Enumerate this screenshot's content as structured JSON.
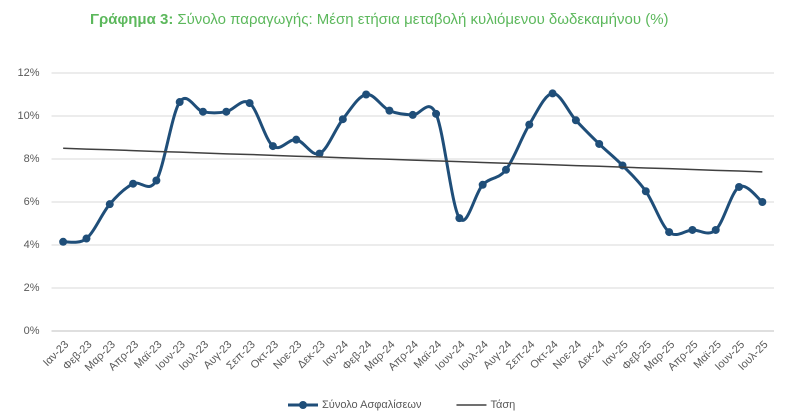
{
  "chart_data": {
    "type": "line",
    "title_label": "Γράφημα 3:",
    "title": "Σύνολο παραγωγής:  Μέση ετήσια μεταβολή κυλιόμενου δωδεκαμήνου (%)",
    "categories": [
      "Ιαν-23",
      "Φεβ-23",
      "Μαρ-23",
      "Απρ-23",
      "Μαϊ-23",
      "Ιουν-23",
      "Ιουλ-23",
      "Αυγ-23",
      "Σεπ-23",
      "Οκτ-23",
      "Νοε-23",
      "Δεκ-23",
      "Ιαν-24",
      "Φεβ-24",
      "Μαρ-24",
      "Απρ-24",
      "Μαϊ-24",
      "Ιουν-24",
      "Ιουλ-24",
      "Αυγ-24",
      "Σεπ-24",
      "Οκτ-24",
      "Νοε-24",
      "Δεκ-24",
      "Ιαν-25",
      "Φεβ-25",
      "Μαρ-25",
      "Απρ-25",
      "Μαϊ-25",
      "Ιουν-25",
      "Ιουλ-25"
    ],
    "series": [
      {
        "name": "Σύνολο Ασφαλίσεων",
        "color": "#1f4e79",
        "smooth": true,
        "markers": true,
        "values": [
          4.15,
          4.3,
          5.9,
          6.85,
          7.0,
          10.65,
          10.2,
          10.2,
          10.6,
          8.6,
          8.9,
          8.25,
          9.85,
          11.0,
          10.25,
          10.05,
          10.1,
          5.25,
          6.8,
          7.5,
          9.6,
          11.05,
          9.8,
          8.7,
          7.7,
          6.5,
          4.6,
          4.7,
          4.7,
          6.7,
          6.0
        ]
      },
      {
        "name": "Τάση",
        "color": "#404040",
        "smooth": false,
        "markers": false,
        "values": [
          8.5,
          8.46,
          8.43,
          8.39,
          8.35,
          8.32,
          8.28,
          8.24,
          8.21,
          8.17,
          8.13,
          8.1,
          8.06,
          8.02,
          7.99,
          7.95,
          7.91,
          7.88,
          7.84,
          7.8,
          7.77,
          7.73,
          7.69,
          7.66,
          7.62,
          7.58,
          7.55,
          7.51,
          7.47,
          7.44,
          7.4
        ]
      }
    ],
    "ylim": [
      0,
      12
    ],
    "yticks": [
      {
        "value": 0,
        "label": "0%"
      },
      {
        "value": 2,
        "label": "2%"
      },
      {
        "value": 4,
        "label": "4%"
      },
      {
        "value": 6,
        "label": "6%"
      },
      {
        "value": 8,
        "label": "8%"
      },
      {
        "value": 10,
        "label": "10%"
      },
      {
        "value": 12,
        "label": "12%"
      }
    ],
    "grid": true,
    "legend": "bottom"
  }
}
